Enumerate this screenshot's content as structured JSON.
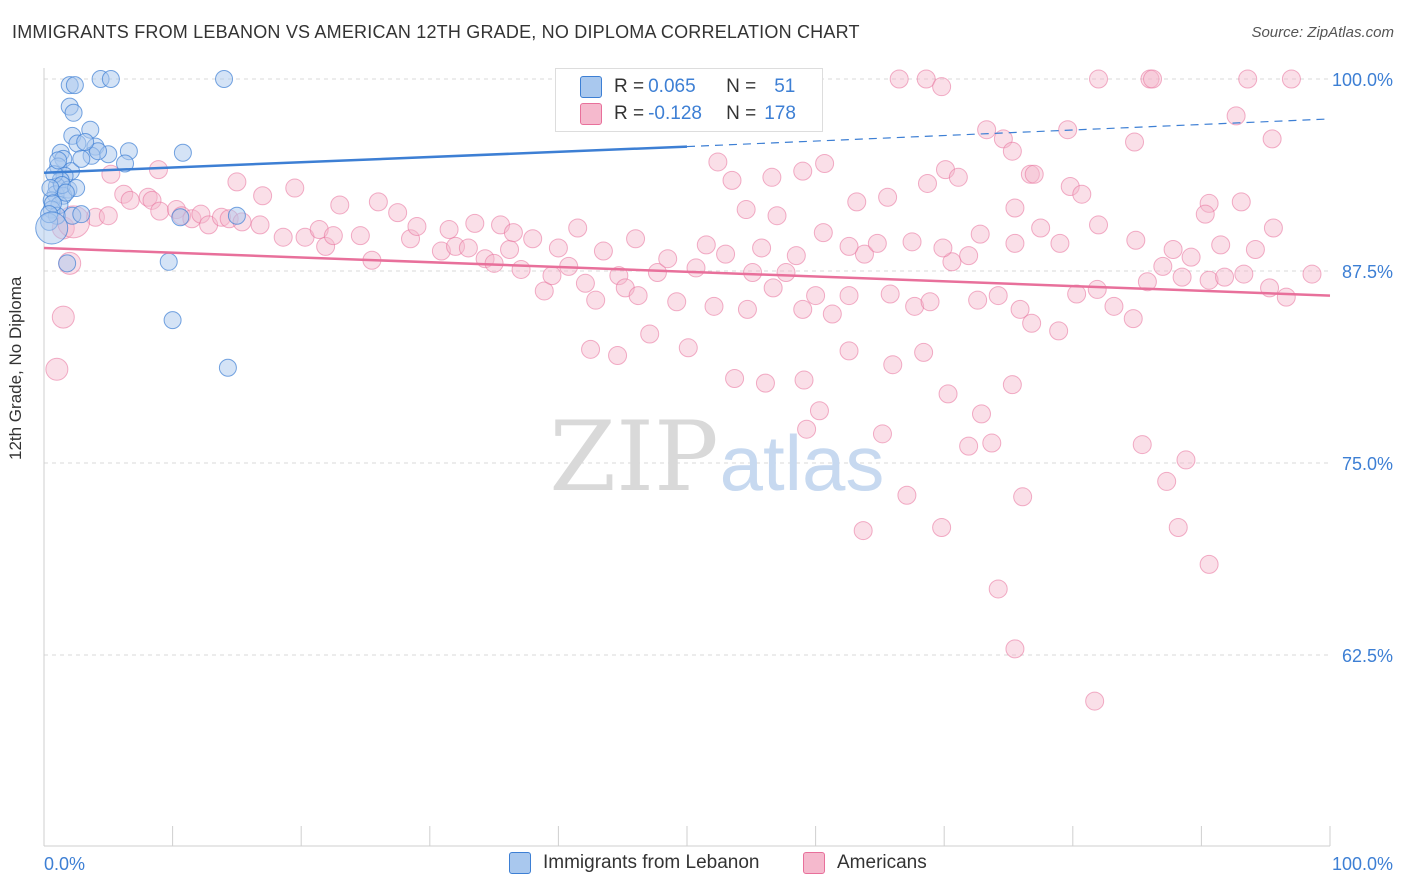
{
  "title": "IMMIGRANTS FROM LEBANON VS AMERICAN 12TH GRADE, NO DIPLOMA CORRELATION CHART",
  "source": "Source: ZipAtlas.com",
  "watermark": {
    "zip": "ZIP",
    "atlas": "atlas"
  },
  "colors": {
    "blue": "#3d7fd4",
    "blue_fill": "#a9c8ee",
    "pink": "#e8709b",
    "pink_fill": "#f5b9cd",
    "grid": "#d8d8d8"
  },
  "legend": {
    "rows": [
      {
        "r_label": "R =",
        "r_value": "0.065",
        "n_label": "N =",
        "n_value": "51"
      },
      {
        "r_label": "R =",
        "r_value": "-0.128",
        "n_label": "N =",
        "n_value": "178"
      }
    ]
  },
  "bottom_legend": {
    "blue": "Immigrants from Lebanon",
    "pink": "Americans"
  },
  "chart_data": {
    "type": "scatter",
    "title": "IMMIGRANTS FROM LEBANON VS AMERICAN 12TH GRADE, NO DIPLOMA CORRELATION CHART",
    "ylabel": "12th Grade, No Diploma",
    "x_tick_labels": [
      "0.0%",
      "100.0%"
    ],
    "y_tick_labels": [
      "100.0%",
      "87.5%",
      "75.0%",
      "62.5%"
    ],
    "y_ticks": [
      100,
      87.5,
      75,
      62.5
    ],
    "xlim": [
      0,
      100
    ],
    "ylim": [
      50,
      100
    ],
    "grid": true,
    "series": [
      {
        "name": "Immigrants from Lebanon",
        "color": "#3d7fd4",
        "trend": {
          "x": [
            0,
            50,
            100
          ],
          "y": [
            93.9,
            95.6,
            97.4
          ],
          "solid_until": 50
        },
        "points": [
          [
            2.0,
            99.6
          ],
          [
            2.4,
            99.6
          ],
          [
            4.4,
            100
          ],
          [
            5.2,
            100
          ],
          [
            14.0,
            100
          ],
          [
            2.0,
            98.2
          ],
          [
            2.3,
            97.8
          ],
          [
            3.6,
            96.7
          ],
          [
            2.2,
            96.3
          ],
          [
            2.6,
            95.8
          ],
          [
            4.0,
            95.6
          ],
          [
            6.6,
            95.3
          ],
          [
            1.3,
            95.2
          ],
          [
            3.7,
            95.0
          ],
          [
            1.5,
            94.8
          ],
          [
            1.1,
            94.3
          ],
          [
            2.1,
            94.0
          ],
          [
            1.6,
            93.7
          ],
          [
            1.3,
            93.4
          ],
          [
            1.0,
            93.0
          ],
          [
            1.9,
            92.8
          ],
          [
            0.9,
            92.5
          ],
          [
            1.5,
            92.4
          ],
          [
            0.6,
            92.1
          ],
          [
            1.2,
            91.8
          ],
          [
            0.6,
            91.5
          ],
          [
            1.0,
            91.1
          ],
          [
            0.4,
            90.7
          ],
          [
            2.2,
            91.1
          ],
          [
            2.9,
            91.2
          ],
          [
            10.6,
            91.0
          ],
          [
            15.0,
            91.1
          ],
          [
            1.8,
            88.0
          ],
          [
            9.7,
            88.1
          ],
          [
            10.0,
            84.3
          ],
          [
            14.3,
            81.2
          ],
          [
            6.3,
            94.5
          ],
          [
            2.9,
            94.8
          ],
          [
            5.0,
            95.1
          ],
          [
            0.8,
            93.8
          ],
          [
            1.4,
            93.1
          ],
          [
            2.5,
            92.9
          ],
          [
            0.5,
            92.9
          ],
          [
            0.7,
            91.9
          ],
          [
            1.7,
            92.6
          ],
          [
            1.1,
            94.7
          ],
          [
            4.2,
            95.3
          ],
          [
            0.4,
            91.2
          ],
          [
            3.2,
            95.9
          ],
          [
            10.8,
            95.2
          ],
          [
            0.6,
            90.3
          ]
        ]
      },
      {
        "name": "Americans",
        "color": "#e8709b",
        "trend": {
          "x": [
            0,
            100
          ],
          "y": [
            89.0,
            85.9
          ]
        },
        "points": [
          [
            66.5,
            100
          ],
          [
            68.6,
            100
          ],
          [
            69.8,
            99.5
          ],
          [
            82.0,
            100
          ],
          [
            86.0,
            100
          ],
          [
            86.2,
            100
          ],
          [
            93.6,
            100
          ],
          [
            97.0,
            100
          ],
          [
            92.7,
            97.6
          ],
          [
            73.3,
            96.7
          ],
          [
            79.6,
            96.7
          ],
          [
            74.6,
            96.1
          ],
          [
            95.5,
            96.1
          ],
          [
            75.3,
            95.3
          ],
          [
            84.8,
            95.9
          ],
          [
            52.4,
            94.6
          ],
          [
            60.7,
            94.5
          ],
          [
            70.1,
            94.1
          ],
          [
            56.6,
            93.6
          ],
          [
            59.0,
            94.0
          ],
          [
            71.1,
            93.6
          ],
          [
            76.7,
            93.8
          ],
          [
            77.0,
            93.8
          ],
          [
            68.7,
            93.2
          ],
          [
            65.6,
            92.3
          ],
          [
            53.5,
            93.4
          ],
          [
            79.8,
            93.0
          ],
          [
            63.2,
            92.0
          ],
          [
            80.7,
            92.5
          ],
          [
            90.6,
            91.9
          ],
          [
            93.1,
            92.0
          ],
          [
            54.6,
            91.5
          ],
          [
            57.0,
            91.1
          ],
          [
            90.3,
            91.2
          ],
          [
            75.5,
            91.6
          ],
          [
            77.5,
            90.3
          ],
          [
            95.6,
            90.3
          ],
          [
            4.0,
            91.0
          ],
          [
            5.0,
            91.1
          ],
          [
            6.2,
            92.5
          ],
          [
            6.7,
            92.1
          ],
          [
            8.1,
            92.3
          ],
          [
            8.4,
            92.1
          ],
          [
            9.0,
            91.4
          ],
          [
            10.3,
            91.5
          ],
          [
            10.7,
            91.1
          ],
          [
            11.5,
            90.9
          ],
          [
            12.2,
            91.2
          ],
          [
            12.8,
            90.5
          ],
          [
            13.8,
            91.0
          ],
          [
            14.4,
            90.9
          ],
          [
            15.4,
            90.7
          ],
          [
            16.8,
            90.5
          ],
          [
            18.6,
            89.7
          ],
          [
            20.3,
            89.7
          ],
          [
            21.4,
            90.2
          ],
          [
            21.9,
            89.1
          ],
          [
            22.5,
            89.8
          ],
          [
            24.6,
            89.8
          ],
          [
            25.5,
            88.2
          ],
          [
            28.5,
            89.6
          ],
          [
            30.9,
            88.8
          ],
          [
            32.0,
            89.1
          ],
          [
            33.0,
            89.0
          ],
          [
            34.3,
            88.3
          ],
          [
            35.0,
            88.0
          ],
          [
            36.2,
            88.9
          ],
          [
            37.1,
            87.6
          ],
          [
            38.9,
            86.2
          ],
          [
            39.5,
            87.2
          ],
          [
            40.8,
            87.8
          ],
          [
            42.1,
            86.7
          ],
          [
            42.9,
            85.6
          ],
          [
            44.7,
            87.2
          ],
          [
            45.2,
            86.4
          ],
          [
            46.2,
            85.9
          ],
          [
            47.7,
            87.4
          ],
          [
            49.2,
            85.5
          ],
          [
            50.7,
            87.7
          ],
          [
            52.1,
            85.2
          ],
          [
            54.7,
            85.0
          ],
          [
            55.1,
            87.4
          ],
          [
            56.7,
            86.4
          ],
          [
            57.7,
            87.4
          ],
          [
            59.0,
            85.0
          ],
          [
            60.0,
            85.9
          ],
          [
            61.3,
            84.7
          ],
          [
            62.6,
            85.9
          ],
          [
            63.8,
            88.6
          ],
          [
            65.8,
            86.0
          ],
          [
            67.7,
            85.2
          ],
          [
            68.9,
            85.5
          ],
          [
            70.6,
            88.1
          ],
          [
            71.9,
            88.5
          ],
          [
            72.6,
            85.6
          ],
          [
            74.2,
            85.9
          ],
          [
            75.9,
            85.0
          ],
          [
            76.8,
            84.1
          ],
          [
            78.9,
            83.6
          ],
          [
            80.3,
            86.0
          ],
          [
            81.9,
            86.3
          ],
          [
            83.2,
            85.2
          ],
          [
            84.7,
            84.4
          ],
          [
            85.8,
            86.8
          ],
          [
            87.0,
            87.8
          ],
          [
            88.5,
            87.1
          ],
          [
            89.2,
            88.4
          ],
          [
            90.6,
            86.9
          ],
          [
            91.8,
            87.1
          ],
          [
            93.3,
            87.3
          ],
          [
            95.3,
            86.4
          ],
          [
            96.6,
            85.8
          ],
          [
            98.6,
            87.3
          ],
          [
            5.2,
            93.8
          ],
          [
            8.9,
            94.1
          ],
          [
            15.0,
            93.3
          ],
          [
            17.0,
            92.4
          ],
          [
            19.5,
            92.9
          ],
          [
            23.0,
            91.8
          ],
          [
            26.0,
            92.0
          ],
          [
            27.5,
            91.3
          ],
          [
            29.0,
            90.4
          ],
          [
            31.5,
            90.2
          ],
          [
            33.5,
            90.6
          ],
          [
            35.5,
            90.5
          ],
          [
            36.5,
            90.0
          ],
          [
            38.0,
            89.6
          ],
          [
            40.0,
            89.0
          ],
          [
            41.5,
            90.3
          ],
          [
            43.5,
            88.8
          ],
          [
            46.0,
            89.6
          ],
          [
            48.5,
            88.3
          ],
          [
            51.5,
            89.2
          ],
          [
            53.0,
            88.6
          ],
          [
            55.8,
            89.0
          ],
          [
            58.5,
            88.5
          ],
          [
            60.6,
            90.0
          ],
          [
            62.6,
            89.1
          ],
          [
            64.8,
            89.3
          ],
          [
            67.5,
            89.4
          ],
          [
            69.9,
            89.0
          ],
          [
            72.8,
            89.9
          ],
          [
            75.5,
            89.3
          ],
          [
            79.0,
            89.3
          ],
          [
            82.0,
            90.5
          ],
          [
            84.9,
            89.5
          ],
          [
            87.8,
            88.9
          ],
          [
            91.5,
            89.2
          ],
          [
            94.2,
            88.9
          ],
          [
            42.5,
            82.4
          ],
          [
            44.6,
            82.0
          ],
          [
            47.1,
            83.4
          ],
          [
            50.1,
            82.5
          ],
          [
            53.7,
            80.5
          ],
          [
            56.1,
            80.2
          ],
          [
            59.1,
            80.4
          ],
          [
            62.6,
            82.3
          ],
          [
            66.0,
            81.4
          ],
          [
            68.4,
            82.2
          ],
          [
            70.3,
            79.5
          ],
          [
            72.9,
            78.2
          ],
          [
            73.7,
            76.3
          ],
          [
            75.3,
            80.1
          ],
          [
            60.3,
            78.4
          ],
          [
            59.3,
            77.2
          ],
          [
            65.2,
            76.9
          ],
          [
            67.1,
            72.9
          ],
          [
            69.8,
            70.8
          ],
          [
            71.9,
            76.1
          ],
          [
            76.1,
            72.8
          ],
          [
            85.4,
            76.2
          ],
          [
            87.3,
            73.8
          ],
          [
            88.8,
            75.2
          ],
          [
            88.2,
            70.8
          ],
          [
            90.6,
            68.4
          ],
          [
            74.2,
            66.8
          ],
          [
            75.5,
            62.9
          ],
          [
            81.7,
            59.5
          ],
          [
            63.7,
            70.6
          ],
          [
            1.0,
            81.1
          ],
          [
            1.5,
            84.5
          ],
          [
            2.0,
            88.0
          ],
          [
            1.5,
            90.3
          ],
          [
            2.3,
            90.7
          ]
        ]
      }
    ]
  }
}
